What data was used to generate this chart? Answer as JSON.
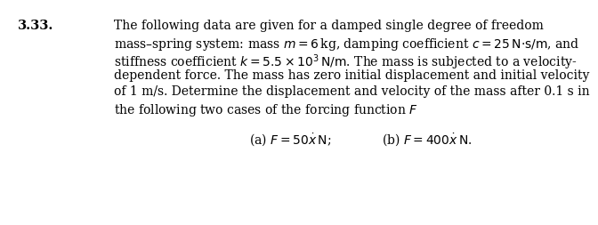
{
  "problem_number": "3.33.",
  "line1": "The following data are given for a damped single degree of freedom",
  "line2": "mass–spring system: mass $m=6\\,$kg, damping coefficient $c=25\\,\\mathrm{N{\\cdot}s/m}$, and",
  "line3": "stiffness coefficient $k=5.5\\times10^3\\,\\mathrm{N/m}$. The mass is subjected to a velocity-",
  "line4": "dependent force. The mass has zero initial displacement and initial velocity",
  "line5": "of 1 m/s. Determine the displacement and velocity of the mass after 0.1 s in",
  "line6": "the following two cases of the forcing function $F$",
  "subpart_a": "(a) $F=50\\dot{x}\\,\\mathrm{N}$;",
  "subpart_b": "(b) $F=400\\dot{x}\\,\\mathrm{N}$.",
  "background_color": "#ffffff",
  "text_color": "#000000",
  "fontsize_number": 10.5,
  "fontsize_body": 10.0
}
